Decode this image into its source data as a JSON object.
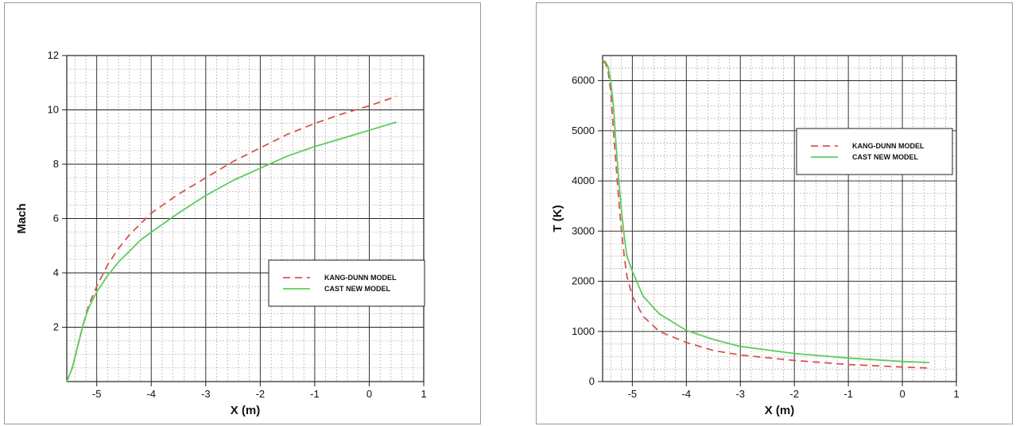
{
  "colors": {
    "kang_dunn": "#d9534f",
    "cast_new": "#5ccc5c",
    "grid_major": "#222222",
    "grid_minor": "#9a9a9a",
    "frame": "#9a9a9a"
  },
  "chart_data": [
    {
      "type": "line",
      "xlabel": "X (m)",
      "ylabel": "Mach",
      "xlim": [
        -5.55,
        1
      ],
      "ylim": [
        0,
        12
      ],
      "xticks": [
        -5,
        -4,
        -3,
        -2,
        -1,
        0,
        1
      ],
      "yticks": [
        2,
        4,
        6,
        8,
        10,
        12
      ],
      "grid": true,
      "legend_position": "lower-right",
      "series": [
        {
          "name": "KANG-DUNN MODEL",
          "style": "dashed",
          "color": "#d9534f",
          "x": [
            -5.55,
            -5.45,
            -5.35,
            -5.25,
            -5.15,
            -5.0,
            -4.8,
            -4.6,
            -4.4,
            -4.2,
            -4.0,
            -3.5,
            -3.0,
            -2.5,
            -2.0,
            -1.5,
            -1.0,
            -0.5,
            0.0,
            0.5
          ],
          "y": [
            0.0,
            0.5,
            1.3,
            2.1,
            2.8,
            3.5,
            4.3,
            4.9,
            5.4,
            5.8,
            6.2,
            6.9,
            7.5,
            8.1,
            8.6,
            9.1,
            9.5,
            9.85,
            10.15,
            10.5
          ]
        },
        {
          "name": "CAST NEW MODEL",
          "style": "solid",
          "color": "#5ccc5c",
          "x": [
            -5.55,
            -5.45,
            -5.35,
            -5.25,
            -5.15,
            -5.0,
            -4.8,
            -4.6,
            -4.4,
            -4.2,
            -4.0,
            -3.5,
            -3.0,
            -2.5,
            -2.0,
            -1.5,
            -1.0,
            -0.5,
            0.0,
            0.5
          ],
          "y": [
            0.0,
            0.5,
            1.3,
            2.1,
            2.7,
            3.3,
            3.9,
            4.4,
            4.8,
            5.2,
            5.5,
            6.2,
            6.85,
            7.4,
            7.85,
            8.3,
            8.65,
            8.95,
            9.25,
            9.55
          ]
        }
      ]
    },
    {
      "type": "line",
      "xlabel": "X (m)",
      "ylabel": "T (K)",
      "xlim": [
        -5.55,
        1
      ],
      "ylim": [
        0,
        6500
      ],
      "xticks": [
        -5,
        -4,
        -3,
        -2,
        -1,
        0,
        1
      ],
      "yticks": [
        0,
        1000,
        2000,
        3000,
        4000,
        5000,
        6000
      ],
      "grid": true,
      "legend_position": "top-right",
      "series": [
        {
          "name": "KANG-DUNN MODEL",
          "style": "dashed",
          "color": "#d9534f",
          "x": [
            -5.55,
            -5.5,
            -5.45,
            -5.4,
            -5.35,
            -5.3,
            -5.25,
            -5.2,
            -5.15,
            -5.1,
            -5.0,
            -4.8,
            -4.5,
            -4.0,
            -3.5,
            -3.0,
            -2.0,
            -1.0,
            0.0,
            0.5
          ],
          "y": [
            6380,
            6350,
            6200,
            5800,
            5000,
            4300,
            3600,
            3000,
            2500,
            2100,
            1700,
            1300,
            1000,
            780,
            620,
            530,
            420,
            340,
            290,
            270
          ]
        },
        {
          "name": "CAST NEW MODEL",
          "style": "solid",
          "color": "#5ccc5c",
          "x": [
            -5.55,
            -5.5,
            -5.45,
            -5.4,
            -5.35,
            -5.3,
            -5.25,
            -5.2,
            -5.15,
            -5.1,
            -5.0,
            -4.8,
            -4.5,
            -4.0,
            -3.5,
            -3.0,
            -2.0,
            -1.0,
            0.0,
            0.5
          ],
          "y": [
            6400,
            6380,
            6280,
            6000,
            5500,
            4700,
            4000,
            3400,
            2900,
            2500,
            2200,
            1700,
            1350,
            1020,
            840,
            700,
            560,
            470,
            400,
            380
          ]
        }
      ]
    }
  ]
}
